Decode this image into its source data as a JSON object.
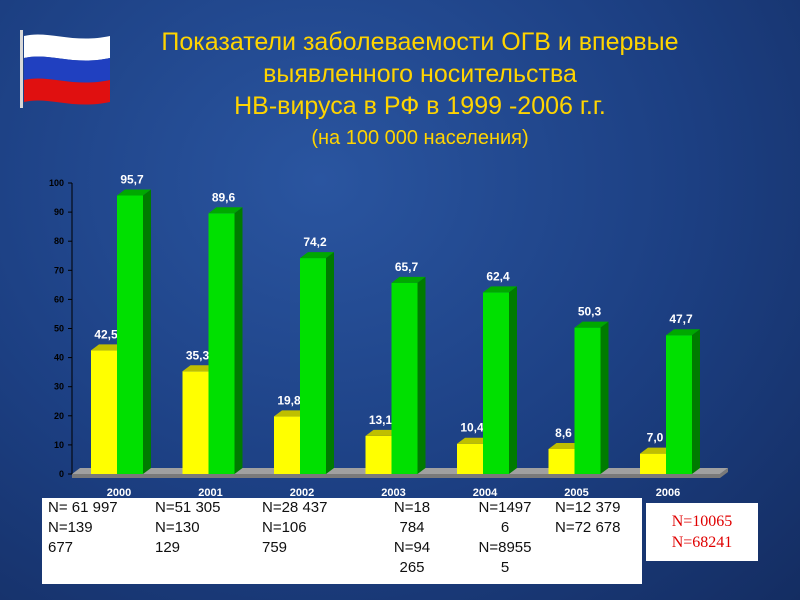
{
  "title": {
    "line1": "Показатели заболеваемости ОГВ и впервые",
    "line2": "выявленного носительства",
    "line3": "НВ-вируса в РФ в 1999 -2006 г.г.",
    "subtitle": "(на 100 000 населения)"
  },
  "chart_data": {
    "type": "bar",
    "categories": [
      "2000",
      "2001",
      "2002",
      "2003",
      "2004",
      "2005",
      "2006"
    ],
    "series": [
      {
        "color": "#ffff00",
        "values": [
          42.5,
          35.3,
          19.8,
          13.1,
          10.4,
          8.6,
          7.0
        ],
        "labels": [
          "42,5",
          "35,3",
          "19,8",
          "13,1",
          "10,4",
          "8,6",
          "7,0"
        ]
      },
      {
        "color": "#00e000",
        "values": [
          95.7,
          89.6,
          74.2,
          65.7,
          62.4,
          50.3,
          47.7
        ],
        "labels": [
          "95,7",
          "89,6",
          "74,2",
          "65,7",
          "62,4",
          "50,3",
          "47,7"
        ]
      }
    ],
    "y_ticks": [
      "0",
      "10",
      "20",
      "30",
      "40",
      "50",
      "60",
      "70",
      "80",
      "90",
      "100"
    ],
    "ylim": [
      0,
      100
    ],
    "grid": false,
    "legend": "none"
  },
  "n_counts": [
    "N= 61 997\nN=139\n677",
    "N=51 305\nN=130\n129",
    "N=28 437\nN=106\n759",
    "N=18\n784\nN=94\n265",
    "N=1497\n6\nN=8955\n5",
    "N=12 379\nN=72 678"
  ],
  "n_2006": {
    "line1": "N=10065",
    "line2": "N=68241"
  }
}
